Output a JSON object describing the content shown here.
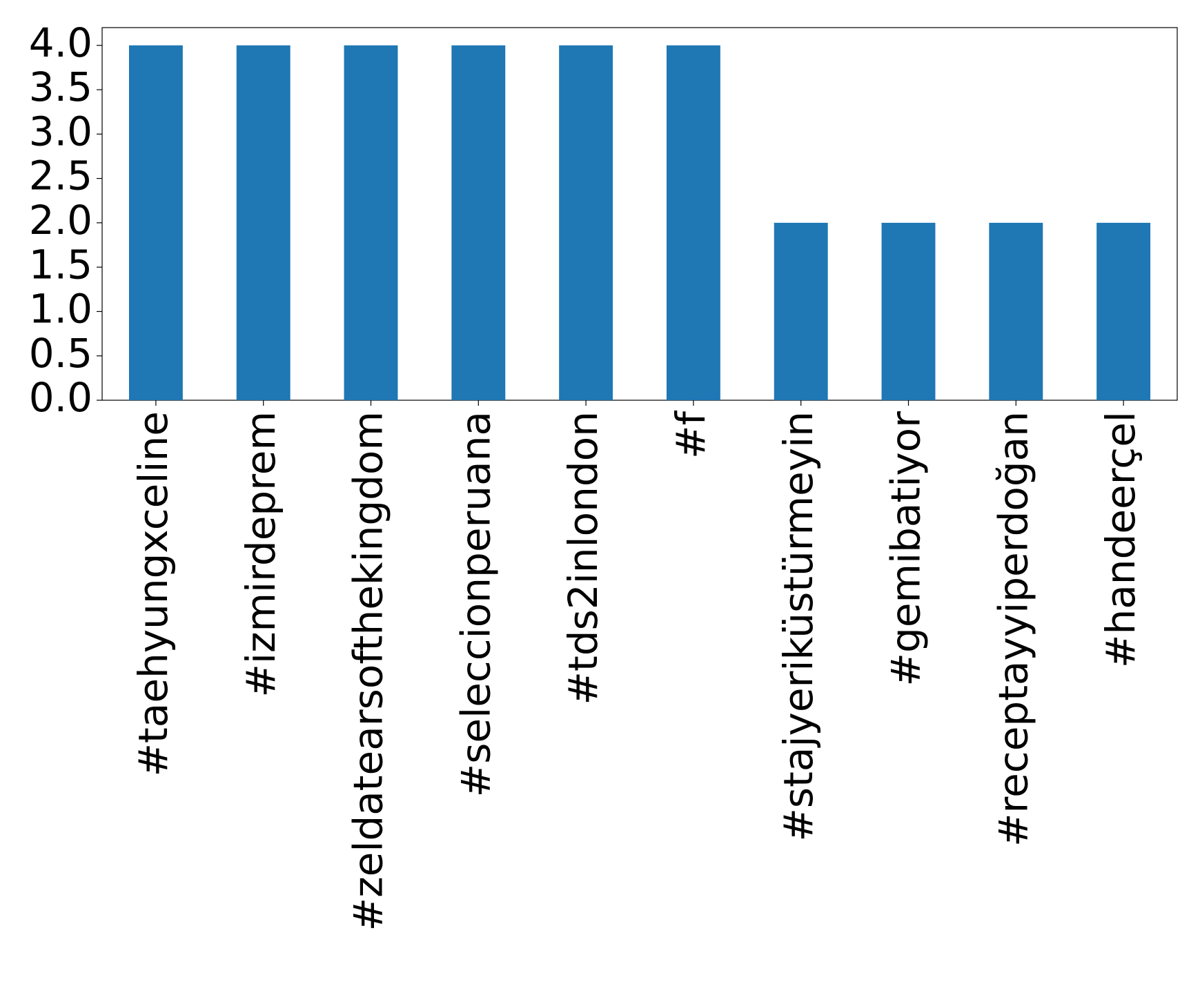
{
  "chart_data": {
    "type": "bar",
    "categories": [
      "#taehyungxceline",
      "#izmirdeprem",
      "#zeldatearsofthekingdom",
      "#seleccionperuana",
      "#tds2inlondon",
      "#f",
      "#stajyeriküstürmeyin",
      "#gemibatiyor",
      "#receptayyiperdoğan",
      "#handeerçel"
    ],
    "values": [
      4,
      4,
      4,
      4,
      4,
      4,
      2,
      2,
      2,
      2
    ],
    "color": "#1f77b4",
    "ylim": [
      0,
      4.2
    ],
    "yticks": [
      {
        "value": 0,
        "label": "0.0"
      },
      0.5,
      {
        "value": 1,
        "label": "1.0"
      },
      1.5,
      {
        "value": 2,
        "label": "2.0"
      },
      2.5,
      {
        "value": 3,
        "label": "3.0"
      },
      3.5,
      {
        "value": 4,
        "label": "4.0"
      }
    ],
    "grid": false
  }
}
